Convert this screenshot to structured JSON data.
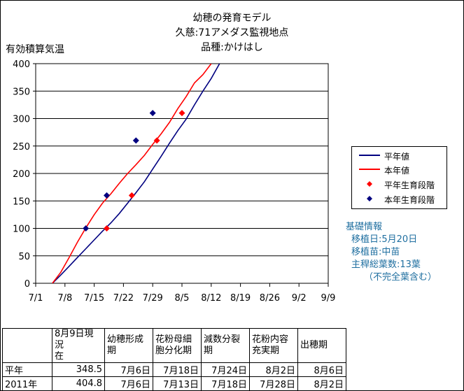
{
  "titles": [
    "幼穂の発育モデル",
    "久慈:71アメダス監視地点",
    "品種:かけはし"
  ],
  "chart_data": {
    "type": "line",
    "ylabel": "有効積算気温",
    "ylim": [
      0,
      400
    ],
    "yticks": [
      0,
      50,
      100,
      150,
      200,
      250,
      300,
      350,
      400
    ],
    "xlim": [
      0,
      70
    ],
    "xtick_labels": [
      "7/1",
      "7/8",
      "7/15",
      "7/22",
      "7/29",
      "8/5",
      "8/12",
      "8/19",
      "8/26",
      "9/2",
      "9/9"
    ],
    "grid": "horizontal",
    "series": [
      {
        "name": "平年値",
        "type": "line",
        "color": "#000080",
        "x": [
          4,
          6,
          8,
          10,
          12,
          14,
          16,
          18,
          20,
          22,
          24,
          26,
          28,
          30,
          32,
          34,
          36,
          38,
          40,
          42,
          44
        ],
        "y": [
          0,
          15,
          31,
          47,
          63,
          79,
          95,
          110,
          127,
          146,
          165,
          185,
          208,
          231,
          255,
          278,
          299,
          325,
          350,
          373,
          400
        ]
      },
      {
        "name": "本年値",
        "type": "line",
        "color": "#ff0000",
        "x": [
          4,
          6,
          8,
          10,
          12,
          14,
          16,
          18,
          20,
          22,
          24,
          26,
          28,
          30,
          32,
          34,
          36,
          38,
          40,
          42
        ],
        "y": [
          0,
          20,
          47,
          75,
          101,
          125,
          146,
          163,
          182,
          200,
          216,
          233,
          253,
          272,
          293,
          318,
          340,
          365,
          380,
          400
        ]
      },
      {
        "name": "平年生育段階",
        "type": "scatter",
        "color": "#ff0000",
        "x": [
          17,
          23,
          29,
          35
        ],
        "y": [
          100,
          160,
          260,
          310
        ]
      },
      {
        "name": "本年生育段階",
        "type": "scatter",
        "color": "#000080",
        "x": [
          12,
          17,
          24,
          28
        ],
        "y": [
          100,
          160,
          260,
          310
        ]
      }
    ]
  },
  "info": {
    "title": "基礎情報",
    "lines": [
      "移植日:5月20日",
      "移植苗:中苗",
      "主稈総葉数:13葉",
      "（不完全葉含む）"
    ]
  },
  "table": {
    "headers": [
      "",
      "8月9日現況\n在",
      "幼穂形成\n期",
      "花粉母細\n胞分化期",
      "減数分裂\n期",
      "花粉内容\n充実期",
      "出穂期"
    ],
    "rows": [
      [
        "平年",
        "348.5",
        "7月6日",
        "7月18日",
        "7月24日",
        "8月2日",
        "8月6日"
      ],
      [
        "2011年",
        "404.8",
        "7月6日",
        "7月13日",
        "7月18日",
        "7月28日",
        "8月2日"
      ]
    ]
  }
}
